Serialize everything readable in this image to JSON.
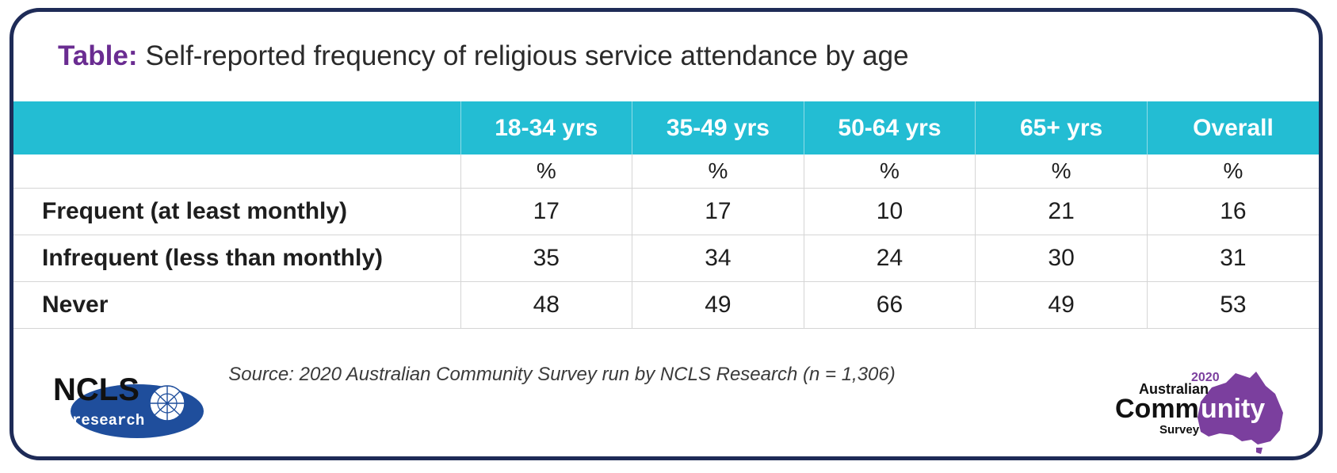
{
  "title": {
    "label": "Table:",
    "text": "Self-reported frequency of religious service attendance by age"
  },
  "table": {
    "columns": [
      "18-34 yrs",
      "35-49 yrs",
      "50-64 yrs",
      "65+ yrs",
      "Overall"
    ],
    "unit": "%",
    "rows": [
      {
        "label": "Frequent (at least monthly)",
        "values": [
          "17",
          "17",
          "10",
          "21",
          "16"
        ]
      },
      {
        "label": "Infrequent (less than monthly)",
        "values": [
          "35",
          "34",
          "24",
          "30",
          "31"
        ]
      },
      {
        "label": "Never",
        "values": [
          "48",
          "49",
          "66",
          "49",
          "53"
        ]
      }
    ]
  },
  "source": "Source: 2020 Australian Community Survey run by NCLS Research (n = 1,306)",
  "logos": {
    "ncls": {
      "name": "NCLS",
      "sub": "research"
    },
    "acs": {
      "year": "2020",
      "line1": "Australian",
      "line2a": "Comm",
      "line2b": "unity",
      "line3": "Survey"
    }
  },
  "colors": {
    "header_bg": "#23bdd3",
    "title_label": "#6a2c91",
    "frame": "#1e2b57",
    "ncls_blue": "#1f4e9c",
    "acs_purple": "#7b3f9e"
  }
}
